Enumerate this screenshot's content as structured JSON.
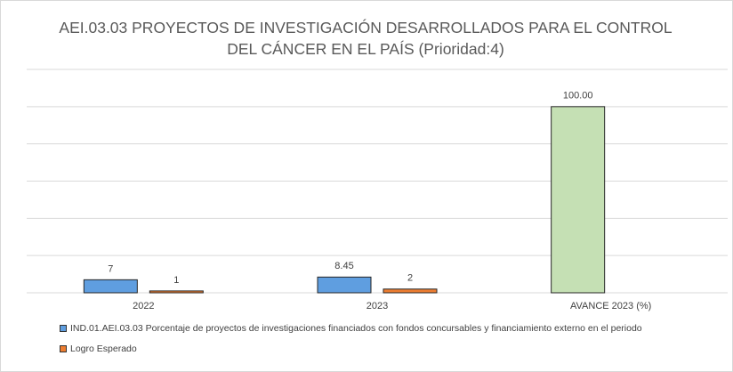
{
  "chart_data": {
    "type": "bar",
    "title": "AEI.03.03 PROYECTOS DE INVESTIGACIÓN DESARROLLADOS PARA EL CONTROL DEL CÁNCER EN EL PAÍS (Prioridad:4)",
    "categories": [
      "2022",
      "2023",
      "AVANCE 2023 (%)"
    ],
    "series": [
      {
        "name": "IND.01.AEI.03.03 Porcentaje de proyectos de investigaciones financiados con fondos concursables y financiamiento externo en el periodo",
        "color": "#5f9ee0",
        "point_colors": [
          null,
          null,
          "#c5e0b4"
        ],
        "values": [
          7,
          8.45,
          100
        ],
        "value_labels": [
          "7",
          "8.45",
          "100.00"
        ]
      },
      {
        "name": "Logro Esperado",
        "color": "#ed7d31",
        "values": [
          1,
          2,
          null
        ]
      }
    ],
    "ylim": [
      0,
      120
    ],
    "yticks": [
      0,
      20,
      40,
      60,
      80,
      100,
      120
    ],
    "ytick_labels_shown": false,
    "grid": true,
    "legend": "bottom"
  }
}
